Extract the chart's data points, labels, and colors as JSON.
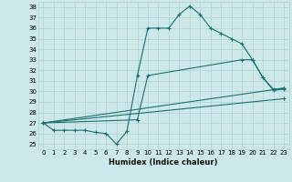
{
  "xlabel": "Humidex (Indice chaleur)",
  "bg_color": "#cce8e8",
  "line_color": "#1a7070",
  "grid_color": "#b0d0d0",
  "xlim": [
    -0.5,
    23.5
  ],
  "ylim": [
    24.5,
    38.5
  ],
  "yticks": [
    25,
    26,
    27,
    28,
    29,
    30,
    31,
    32,
    33,
    34,
    35,
    36,
    37,
    38
  ],
  "xticks": [
    0,
    1,
    2,
    3,
    4,
    5,
    6,
    7,
    8,
    9,
    10,
    11,
    12,
    13,
    14,
    15,
    16,
    17,
    18,
    19,
    20,
    21,
    22,
    23
  ],
  "curve1_x": [
    0,
    1,
    2,
    3,
    4,
    5,
    6,
    7,
    8,
    9,
    10,
    11,
    12,
    13,
    14,
    15,
    16,
    17,
    18,
    19,
    20,
    21,
    22,
    23
  ],
  "curve1_y": [
    27.0,
    26.3,
    26.3,
    26.3,
    26.3,
    26.1,
    26.0,
    25.0,
    26.2,
    31.5,
    36.0,
    36.0,
    36.0,
    37.3,
    38.1,
    37.3,
    36.0,
    35.5,
    35.0,
    34.5,
    33.0,
    31.3,
    30.1,
    30.2
  ],
  "curve2_x": [
    0,
    9,
    10,
    19,
    20,
    21,
    22,
    23
  ],
  "curve2_y": [
    27.0,
    27.3,
    31.5,
    33.0,
    33.0,
    31.3,
    30.2,
    30.3
  ],
  "curve3_x": [
    0,
    23
  ],
  "curve3_y": [
    27.0,
    30.3
  ],
  "curve4_x": [
    0,
    23
  ],
  "curve4_y": [
    27.0,
    29.3
  ]
}
